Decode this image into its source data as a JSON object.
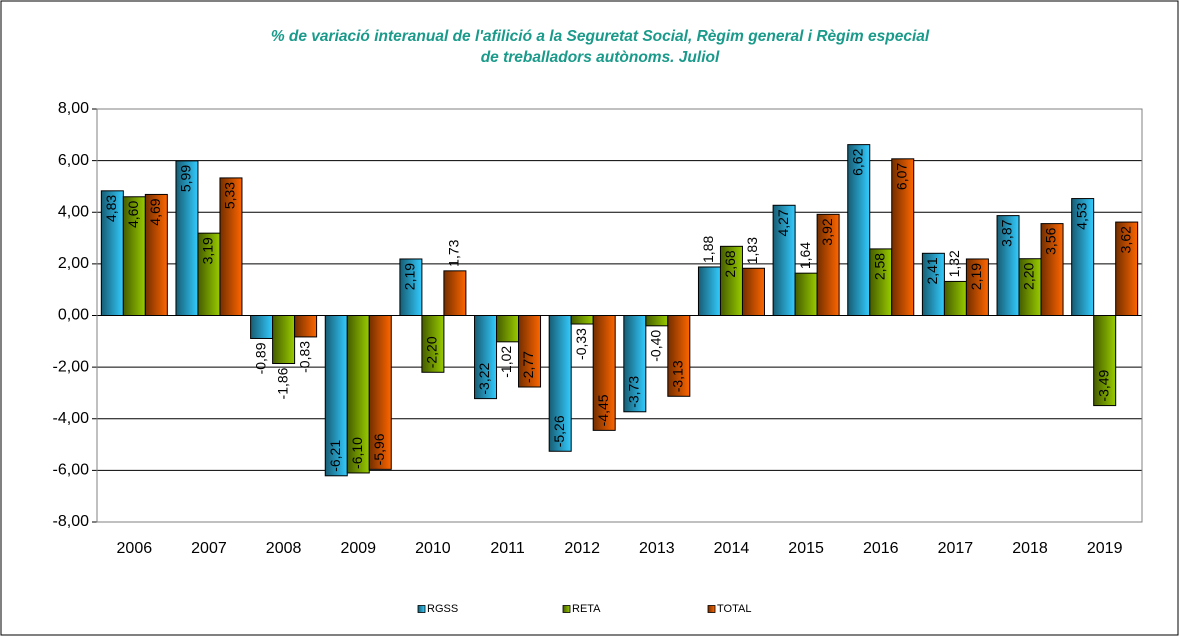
{
  "chart_data": {
    "type": "bar",
    "title": [
      "% de variació interanual de l'afilició a la Seguretat Social, Règim general i Règim especial",
      "de treballadors autònoms. Juliol"
    ],
    "categories": [
      "2006",
      "2007",
      "2008",
      "2009",
      "2010",
      "2011",
      "2012",
      "2013",
      "2014",
      "2015",
      "2016",
      "2017",
      "2018",
      "2019"
    ],
    "series": [
      {
        "name": "RGSS",
        "color": "#33ccff",
        "values": [
          4.83,
          5.99,
          -0.89,
          -6.21,
          2.19,
          -3.22,
          -5.26,
          -3.73,
          1.88,
          4.27,
          6.62,
          2.41,
          3.87,
          4.53
        ],
        "value_labels": [
          "4,83",
          "5,99",
          "-0,89",
          "-6,21",
          "2,19",
          "-3,22",
          "-5,26",
          "-3,73",
          "1,88",
          "4,27",
          "6,62",
          "2,41",
          "3,87",
          "4,53"
        ]
      },
      {
        "name": "RETA",
        "color": "#99cc00",
        "values": [
          4.6,
          3.19,
          -1.86,
          -6.1,
          -2.2,
          -1.02,
          -0.33,
          -0.4,
          2.68,
          1.64,
          2.58,
          1.32,
          2.2,
          -3.49
        ],
        "value_labels": [
          "4,60",
          "3,19",
          "-1,86",
          "-6,10",
          "-2,20",
          "-1,02",
          "-0,33",
          "-0,40",
          "2,68",
          "1,64",
          "2,58",
          "1,32",
          "2,20",
          "-3,49"
        ]
      },
      {
        "name": "TOTAL",
        "color": "#ff6600",
        "values": [
          4.69,
          5.33,
          -0.83,
          -5.96,
          1.73,
          -2.77,
          -4.45,
          -3.13,
          1.83,
          3.92,
          6.07,
          2.19,
          3.56,
          3.62
        ],
        "value_labels": [
          "4,69",
          "5,33",
          "-0,83",
          "-5,96",
          "1,73",
          "-2,77",
          "-4,45",
          "-3,13",
          "1,83",
          "3,92",
          "6,07",
          "2,19",
          "3,56",
          "3,62"
        ]
      }
    ],
    "ylim": [
      -8,
      8
    ],
    "yticks": [
      {
        "value": -8,
        "label": "-8,00"
      },
      {
        "value": -6,
        "label": "-6,00"
      },
      {
        "value": -4,
        "label": "-4,00"
      },
      {
        "value": -2,
        "label": "-2,00"
      },
      {
        "value": 0,
        "label": "0,00"
      },
      {
        "value": 2,
        "label": "2,00"
      },
      {
        "value": 4,
        "label": "4,00"
      },
      {
        "value": 6,
        "label": "6,00"
      },
      {
        "value": 8,
        "label": "8,00"
      }
    ],
    "grid": true,
    "legend": "bottom"
  }
}
